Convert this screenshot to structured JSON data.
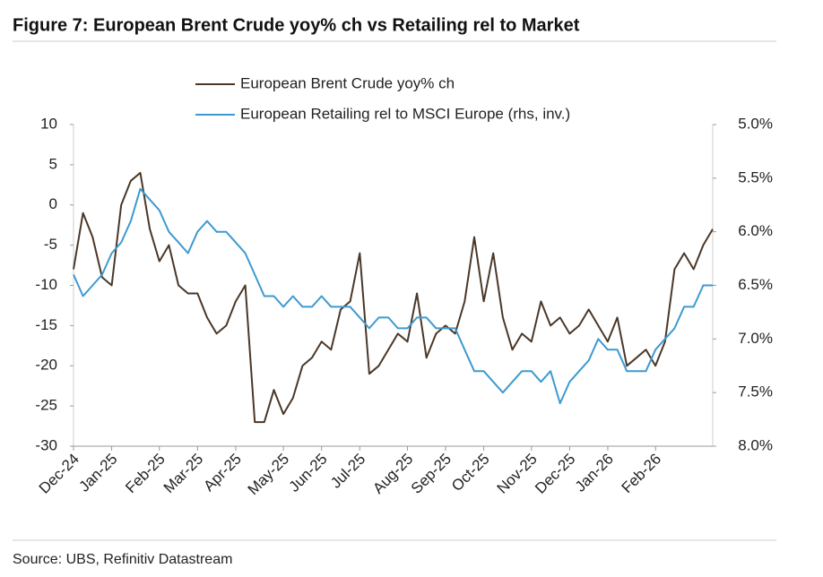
{
  "chart_data": {
    "type": "line",
    "title": "Figure 7: European Brent Crude yoy% ch vs Retailing rel to Market",
    "source": "Source: UBS, Refinitiv Datastream",
    "categories": [
      "Dec-24",
      null,
      null,
      null,
      "Jan-25",
      null,
      null,
      null,
      null,
      "Feb-25",
      null,
      null,
      null,
      "Mar-25",
      null,
      null,
      null,
      "Apr-25",
      null,
      null,
      null,
      null,
      "May-25",
      null,
      null,
      null,
      "Jun-25",
      null,
      null,
      null,
      "Jul-25",
      null,
      null,
      null,
      null,
      "Aug-25",
      null,
      null,
      null,
      "Sep-25",
      null,
      null,
      null,
      "Oct-25",
      null,
      null,
      null,
      null,
      "Nov-25",
      null,
      null,
      null,
      "Dec-25",
      null,
      null,
      null,
      "Jan-26",
      null,
      null,
      null,
      null,
      "Feb-26",
      null,
      null,
      null,
      null,
      null,
      null
    ],
    "series": [
      {
        "name": "European Brent Crude yoy% ch",
        "color": "#4a3728",
        "values": [
          -8,
          -1,
          -4,
          -9,
          -10,
          0,
          3,
          4,
          -3,
          -7,
          -5,
          -10,
          -11,
          -11,
          -14,
          -16,
          -15,
          -12,
          -10,
          -27,
          -27,
          -23,
          -26,
          -24,
          -20,
          -19,
          -17,
          -18,
          -13,
          -12,
          -6,
          -21,
          -20,
          -18,
          -16,
          -17,
          -11,
          -19,
          -16,
          -15,
          -16,
          -12,
          -4,
          -12,
          -6,
          -14,
          -18,
          -16,
          -17,
          -12,
          -15,
          -14,
          -16,
          -15,
          -13,
          -15,
          -17,
          -14,
          -20,
          -19,
          -18,
          -20,
          -17,
          -8,
          -6,
          -8,
          -5,
          -3
        ]
      },
      {
        "name": "European Retailing rel to MSCI Europe (rhs, inv.)",
        "color": "#3d9ad1",
        "axis": "y2",
        "values": [
          6.4,
          6.6,
          6.5,
          6.4,
          6.2,
          6.1,
          5.9,
          5.6,
          5.7,
          5.8,
          6.0,
          6.1,
          6.2,
          6.0,
          5.9,
          6.0,
          6.0,
          6.1,
          6.2,
          6.4,
          6.6,
          6.6,
          6.7,
          6.6,
          6.7,
          6.7,
          6.6,
          6.7,
          6.7,
          6.7,
          6.8,
          6.9,
          6.8,
          6.8,
          6.9,
          6.9,
          6.8,
          6.8,
          6.9,
          6.9,
          6.9,
          7.1,
          7.3,
          7.3,
          7.4,
          7.5,
          7.4,
          7.3,
          7.3,
          7.4,
          7.3,
          7.6,
          7.4,
          7.3,
          7.2,
          7.0,
          7.1,
          7.1,
          7.3,
          7.3,
          7.3,
          7.1,
          7.0,
          6.9,
          6.7,
          6.7,
          6.5,
          6.5
        ]
      }
    ],
    "ylim": [
      -30,
      10
    ],
    "yticks": [
      -30,
      -25,
      -20,
      -15,
      -10,
      -5,
      0,
      5,
      10
    ],
    "y2lim": [
      8,
      5
    ],
    "y2_inverted": true,
    "y2ticks": [
      {
        "value": 5,
        "label": "5.0%"
      },
      {
        "value": 5.5,
        "label": "5.5%"
      },
      {
        "value": 6,
        "label": "6.0%"
      },
      {
        "value": 6.5,
        "label": "6.5%"
      },
      {
        "value": 7,
        "label": "7.0%"
      },
      {
        "value": 7.5,
        "label": "7.5%"
      },
      {
        "value": 8,
        "label": "8.0%"
      }
    ],
    "legend": "top",
    "grid": false
  }
}
